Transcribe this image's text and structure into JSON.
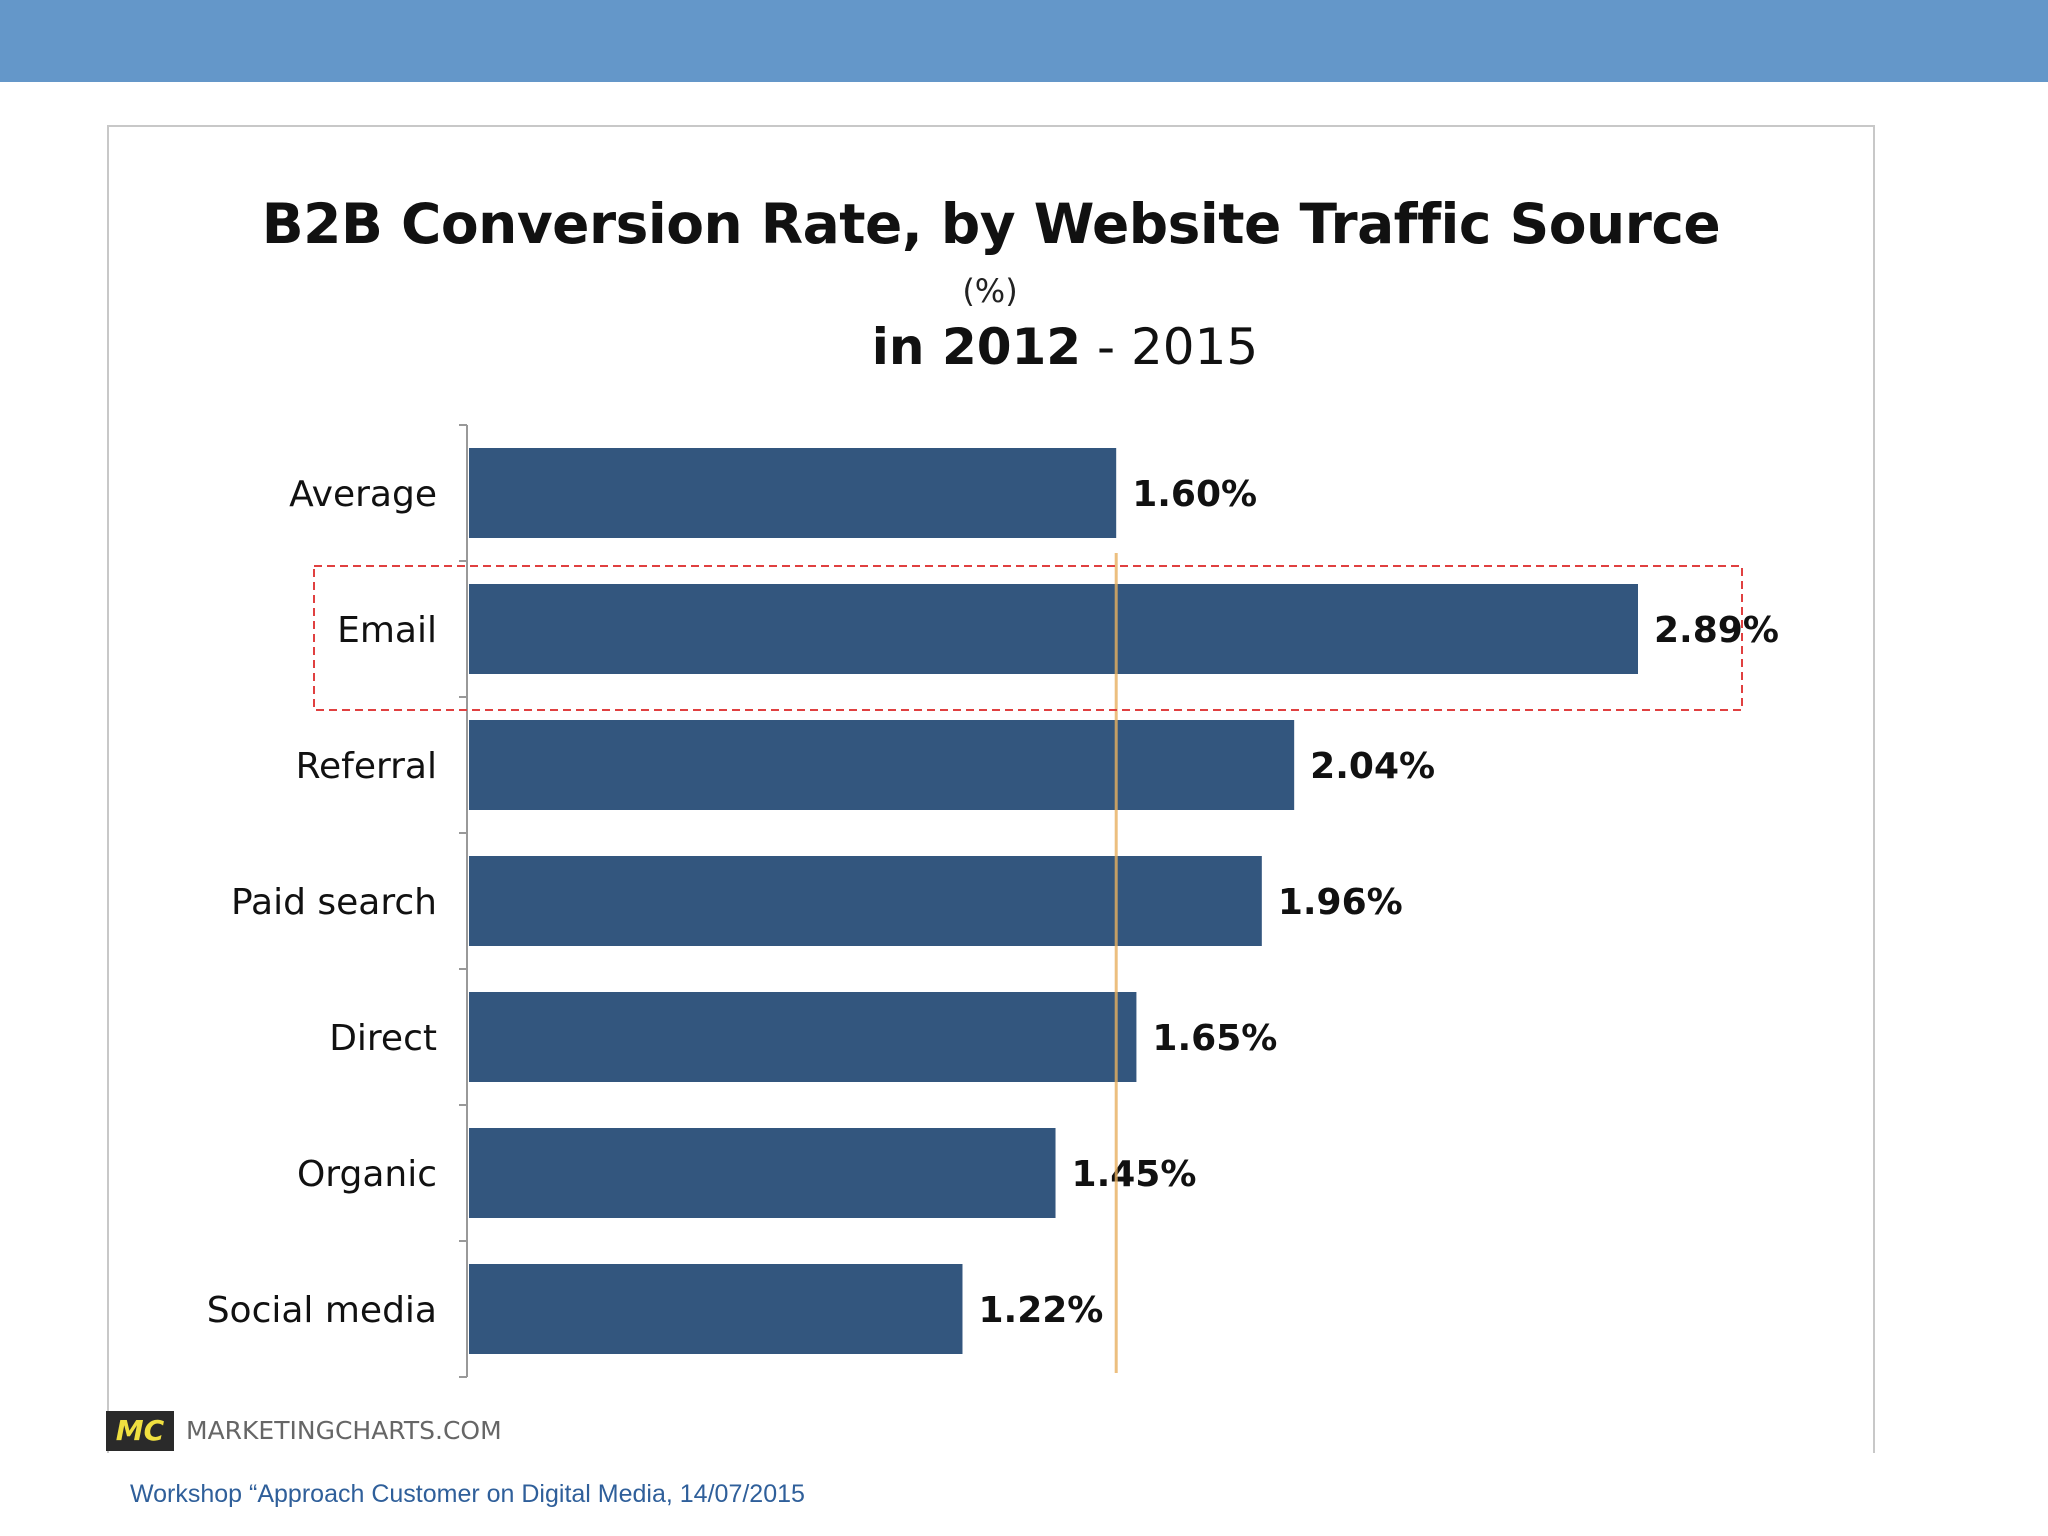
{
  "footer": {
    "text": "Workshop “Approach Customer on Digital Media, 14/07/2015"
  },
  "brand": {
    "logo_text": "MC",
    "site": "MARKETINGCHARTS.COM"
  },
  "colors": {
    "header_bar": "#6497c9",
    "bar": "#33567e",
    "highlight_box": "#e04040",
    "average_line": "#e8b060"
  },
  "chart_data": {
    "type": "bar",
    "orientation": "horizontal",
    "title": "B2B Conversion Rate, by Website Traffic Source",
    "unit_label": "(%)",
    "period_prefix": "in 2012",
    "period_suffix": "- 2015",
    "categories": [
      "Average",
      "Email",
      "Referral",
      "Paid search",
      "Direct",
      "Organic",
      "Social media"
    ],
    "values": [
      1.6,
      2.89,
      2.04,
      1.96,
      1.65,
      1.45,
      1.22
    ],
    "data_labels": [
      "1.60%",
      "2.89%",
      "2.04%",
      "1.96%",
      "1.65%",
      "1.45%",
      "1.22%"
    ],
    "xlim": [
      0,
      2.89
    ],
    "highlighted_category": "Email",
    "reference_value": 1.6,
    "legend": "none",
    "grid": false
  }
}
